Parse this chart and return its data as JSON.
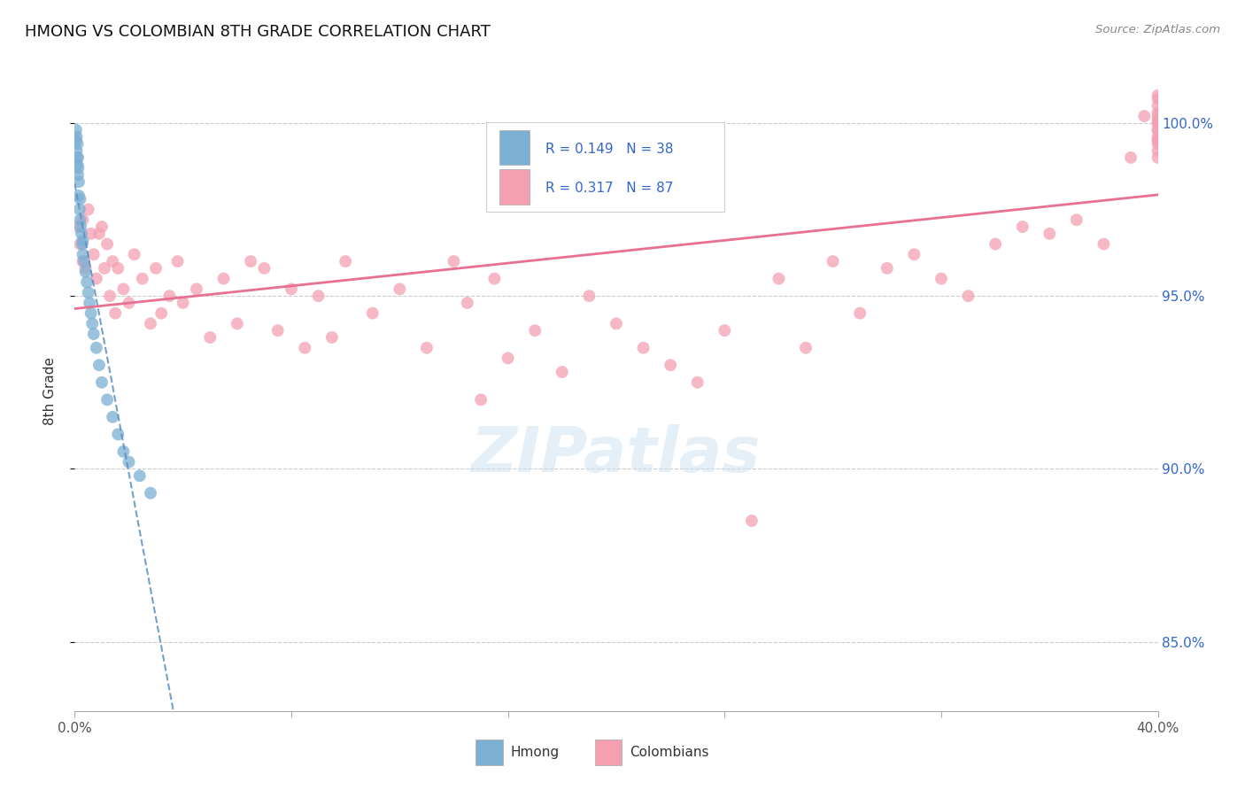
{
  "title": "HMONG VS COLOMBIAN 8TH GRADE CORRELATION CHART",
  "source": "Source: ZipAtlas.com",
  "ylabel": "8th Grade",
  "xmin": 0.0,
  "xmax": 40.0,
  "ymin": 83.0,
  "ymax": 101.5,
  "yticks": [
    85.0,
    90.0,
    95.0,
    100.0
  ],
  "xticks": [
    0.0,
    8.0,
    16.0,
    24.0,
    32.0,
    40.0
  ],
  "xtick_labels": [
    "0.0%",
    "",
    "",
    "",
    "",
    "40.0%"
  ],
  "R_hmong": 0.149,
  "N_hmong": 38,
  "R_colombian": 0.317,
  "N_colombian": 87,
  "hmong_color": "#7bafd4",
  "colombian_color": "#f4a0b0",
  "hmong_line_color": "#5b8fc5",
  "colombian_line_color": "#e87090",
  "legend_R_color": "#3366cc",
  "hmong_x": [
    0.05,
    0.05,
    0.07,
    0.07,
    0.08,
    0.1,
    0.1,
    0.12,
    0.12,
    0.13,
    0.15,
    0.15,
    0.18,
    0.2,
    0.2,
    0.22,
    0.25,
    0.28,
    0.3,
    0.3,
    0.35,
    0.4,
    0.45,
    0.5,
    0.55,
    0.6,
    0.65,
    0.7,
    0.8,
    0.9,
    1.0,
    1.2,
    1.4,
    1.6,
    1.8,
    2.0,
    2.4,
    2.8
  ],
  "hmong_y": [
    99.8,
    99.5,
    99.6,
    99.2,
    99.0,
    99.4,
    98.8,
    99.0,
    98.5,
    98.7,
    98.3,
    97.9,
    97.5,
    97.8,
    97.2,
    97.0,
    96.8,
    96.5,
    96.2,
    96.6,
    96.0,
    95.7,
    95.4,
    95.1,
    94.8,
    94.5,
    94.2,
    93.9,
    93.5,
    93.0,
    92.5,
    92.0,
    91.5,
    91.0,
    90.5,
    90.2,
    89.8,
    89.3
  ],
  "colombian_x": [
    0.1,
    0.2,
    0.3,
    0.3,
    0.4,
    0.5,
    0.6,
    0.7,
    0.8,
    0.9,
    1.0,
    1.1,
    1.2,
    1.3,
    1.4,
    1.5,
    1.6,
    1.8,
    2.0,
    2.2,
    2.5,
    2.8,
    3.0,
    3.2,
    3.5,
    3.8,
    4.0,
    4.5,
    5.0,
    5.5,
    6.0,
    6.5,
    7.0,
    7.5,
    8.0,
    8.5,
    9.0,
    9.5,
    10.0,
    11.0,
    12.0,
    13.0,
    14.0,
    14.5,
    15.0,
    15.5,
    16.0,
    17.0,
    18.0,
    19.0,
    20.0,
    21.0,
    22.0,
    23.0,
    24.0,
    25.0,
    26.0,
    27.0,
    28.0,
    29.0,
    30.0,
    31.0,
    32.0,
    33.0,
    34.0,
    35.0,
    36.0,
    37.0,
    38.0,
    39.0,
    39.5,
    40.0,
    40.0,
    40.0,
    40.0,
    40.0,
    40.0,
    40.0,
    40.0,
    40.0,
    40.0,
    40.0,
    40.0,
    40.0,
    40.0,
    40.0,
    40.0
  ],
  "colombian_y": [
    97.0,
    96.5,
    97.2,
    96.0,
    95.8,
    97.5,
    96.8,
    96.2,
    95.5,
    96.8,
    97.0,
    95.8,
    96.5,
    95.0,
    96.0,
    94.5,
    95.8,
    95.2,
    94.8,
    96.2,
    95.5,
    94.2,
    95.8,
    94.5,
    95.0,
    96.0,
    94.8,
    95.2,
    93.8,
    95.5,
    94.2,
    96.0,
    95.8,
    94.0,
    95.2,
    93.5,
    95.0,
    93.8,
    96.0,
    94.5,
    95.2,
    93.5,
    96.0,
    94.8,
    92.0,
    95.5,
    93.2,
    94.0,
    92.8,
    95.0,
    94.2,
    93.5,
    93.0,
    92.5,
    94.0,
    88.5,
    95.5,
    93.5,
    96.0,
    94.5,
    95.8,
    96.2,
    95.5,
    95.0,
    96.5,
    97.0,
    96.8,
    97.2,
    96.5,
    99.0,
    100.2,
    99.5,
    99.8,
    100.0,
    100.5,
    99.2,
    100.8,
    99.0,
    100.3,
    99.6,
    100.1,
    99.4,
    100.7,
    99.8,
    100.2,
    99.5,
    100.0
  ]
}
